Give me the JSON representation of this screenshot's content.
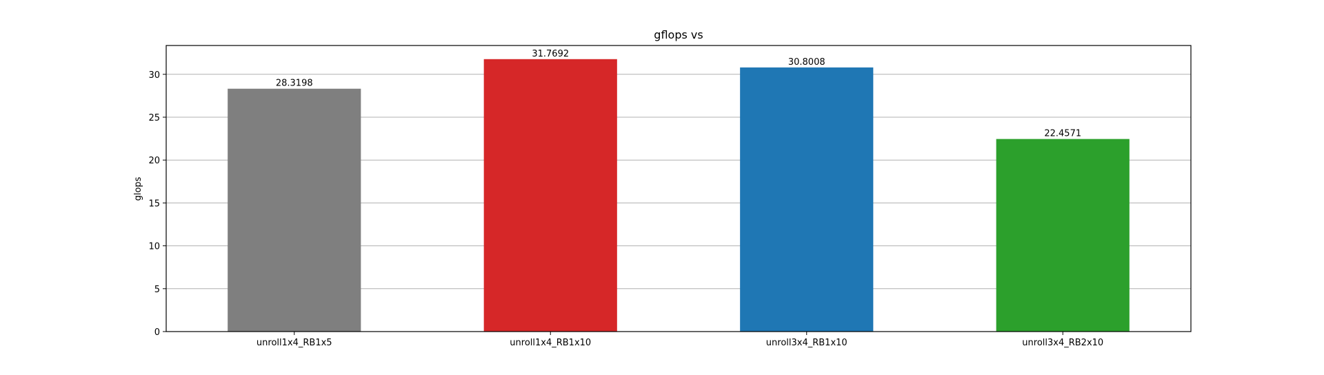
{
  "chart_data": {
    "type": "bar",
    "title": "gflops vs",
    "xlabel": "",
    "ylabel": "glops",
    "categories": [
      "unroll1x4_RB1x5",
      "unroll1x4_RB1x10",
      "unroll3x4_RB1x10",
      "unroll3x4_RB2x10"
    ],
    "values": [
      28.3198,
      31.7692,
      30.8008,
      22.4571
    ],
    "value_labels": [
      "28.3198",
      "31.7692",
      "30.8008",
      "22.4571"
    ],
    "colors": [
      "#7f7f7f",
      "#d62728",
      "#1f77b4",
      "#2ca02c"
    ],
    "ylim": [
      0,
      33.36
    ],
    "yticks": [
      0,
      5,
      10,
      15,
      20,
      25,
      30
    ],
    "grid": "y",
    "legend": "none"
  }
}
